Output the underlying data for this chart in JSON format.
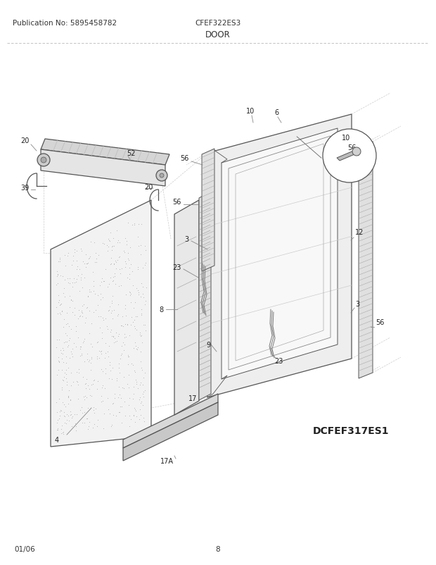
{
  "title_left": "Publication No: 5895458782",
  "title_center": "CFEF322ES3",
  "title_section": "DOOR",
  "footer_left": "01/06",
  "footer_center": "8",
  "diagram_model": "DCFEF317ES1",
  "bg_color": "#ffffff",
  "text_color": "#333333",
  "line_color": "#555555",
  "label_color": "#222222",
  "title_fontsize": 7.5,
  "section_fontsize": 8.5,
  "label_fontsize": 7,
  "footer_fontsize": 7.5,
  "model_fontsize": 10
}
